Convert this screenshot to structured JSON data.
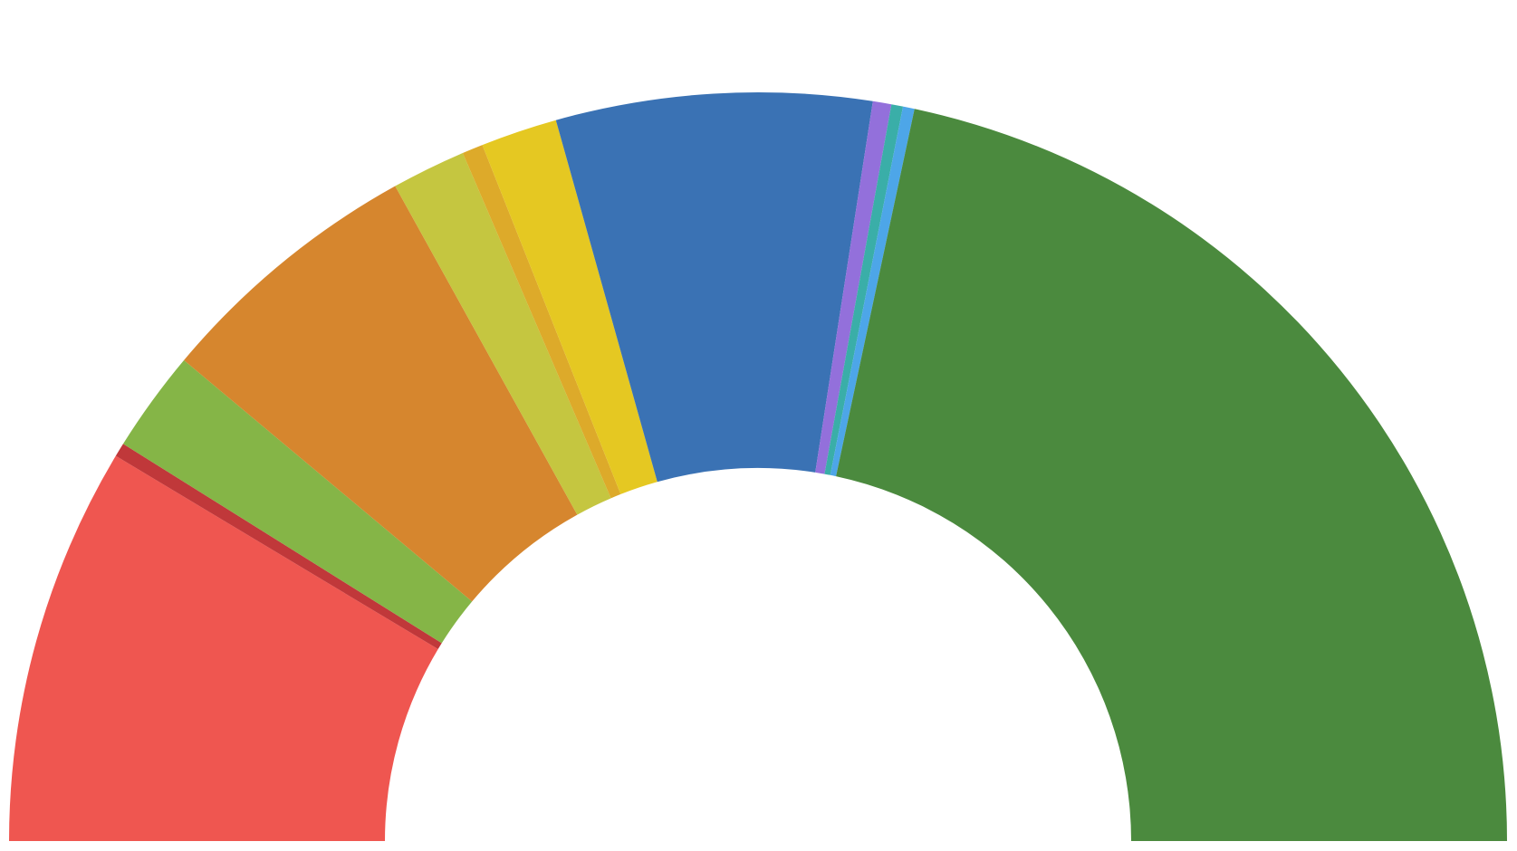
{
  "chart_data": {
    "type": "pie",
    "style": "semicircle-donut",
    "start_angle_deg": -90,
    "end_angle_deg": 90,
    "slices": [
      {
        "value": 17.2,
        "color": "#EF5650"
      },
      {
        "value": 0.6,
        "color": "#C0383A"
      },
      {
        "value": 4.4,
        "color": "#85B547"
      },
      {
        "value": 11.7,
        "color": "#D6862E"
      },
      {
        "value": 3.2,
        "color": "#C5C640"
      },
      {
        "value": 0.9,
        "color": "#DDAA2A"
      },
      {
        "value": 3.3,
        "color": "#E5C822"
      },
      {
        "value": 13.6,
        "color": "#3A72B4"
      },
      {
        "value": 0.8,
        "color": "#9370DB"
      },
      {
        "value": 0.5,
        "color": "#3AAEA8"
      },
      {
        "value": 0.5,
        "color": "#4DA6E8"
      },
      {
        "value": 43.3,
        "color": "#4B8A3E"
      }
    ]
  }
}
